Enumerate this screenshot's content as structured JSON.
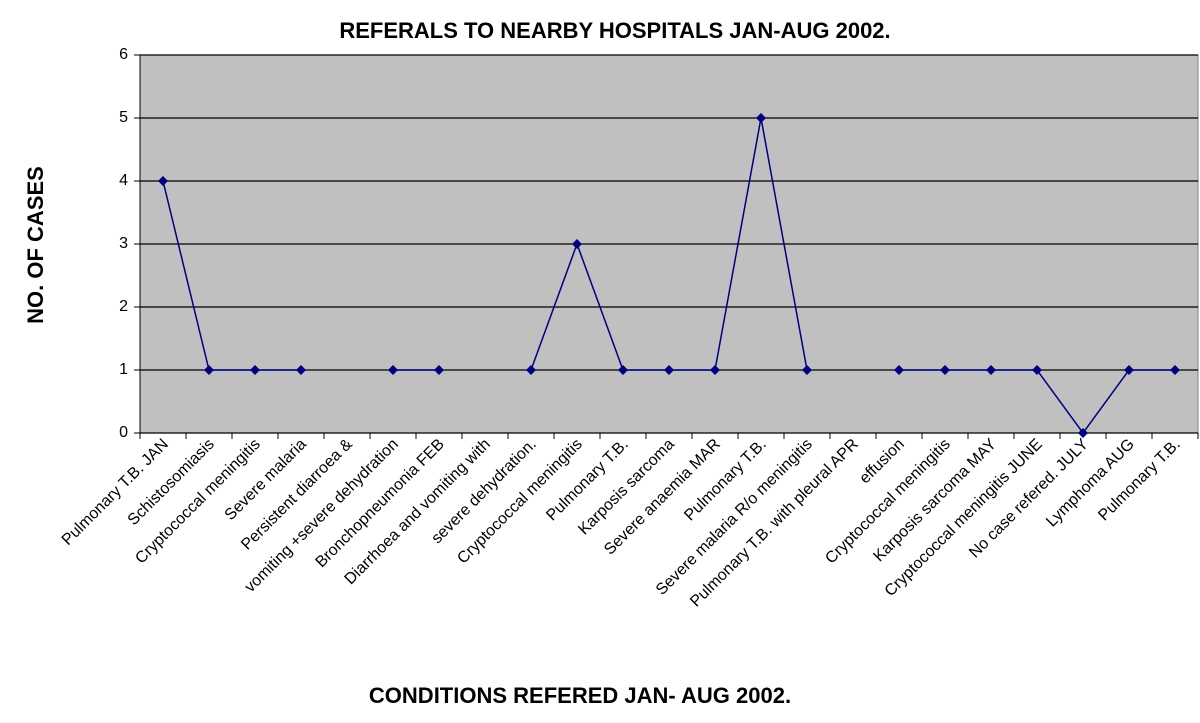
{
  "chart_data": {
    "type": "line",
    "title": "REFERALS TO NEARBY HOSPITALS JAN-AUG 2002.",
    "x_label": "CONDITIONS REFERED JAN- AUG 2002.",
    "y_label": "NO. OF CASES",
    "categories": [
      "Pulmonary T.B. JAN",
      "Schistosomiasis",
      "Cryptococcal meningitis",
      "Severe malaria",
      "Persistent diarroea &",
      "vomiting +severe dehydration",
      "Bronchopneumonia FEB",
      "Diarrhoea and vomiting with",
      "severe dehydration.",
      "Cryptococcal meningitis",
      "Pulmonary T.B.",
      "Karposis sarcoma",
      "Severe anaemia MAR",
      "Pulmonary T.B.",
      "Severe malaria R/o meningitis",
      "Pulmonary T.B. with pleural APR",
      "effusion",
      "Cryptococcal meningitis",
      "Karposis sarcoma MAY",
      "Cryptococcal meningitis JUNE",
      "No case refered. JULY",
      "Lymphoma AUG",
      "Pulmonary T.B."
    ],
    "values": [
      4,
      1,
      1,
      1,
      null,
      1,
      1,
      null,
      1,
      3,
      1,
      1,
      1,
      5,
      1,
      null,
      1,
      1,
      1,
      1,
      0,
      1,
      1
    ],
    "color": "#000080",
    "plot_background": "#c0c0c0",
    "ylim": [
      0,
      6
    ],
    "yticks": [
      0,
      1,
      2,
      3,
      4,
      5,
      6
    ],
    "grid": true
  }
}
